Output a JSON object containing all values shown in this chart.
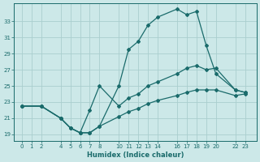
{
  "xlabel": "Humidex (Indice chaleur)",
  "bg_color": "#cce8e8",
  "line_color": "#1a6b6b",
  "grid_color": "#aacece",
  "xtick_vals": [
    0,
    1,
    2,
    4,
    5,
    6,
    7,
    8,
    10,
    11,
    12,
    13,
    14,
    16,
    17,
    18,
    19,
    20,
    22,
    23
  ],
  "ytick_vals": [
    19,
    21,
    23,
    25,
    27,
    29,
    31,
    33
  ],
  "ylim": [
    18.2,
    35.2
  ],
  "xlim": [
    -0.8,
    24.2
  ],
  "curves": [
    {
      "x": [
        0,
        2,
        4,
        5,
        6,
        7,
        8,
        10,
        11,
        12,
        13,
        14,
        16,
        17,
        18,
        19,
        20,
        22,
        23
      ],
      "y": [
        22.5,
        22.5,
        21.0,
        19.8,
        19.2,
        19.2,
        20.0,
        25.0,
        29.5,
        30.5,
        32.5,
        33.5,
        34.5,
        33.8,
        34.2,
        30.0,
        26.5,
        24.5,
        24.2
      ]
    },
    {
      "x": [
        0,
        2,
        4,
        5,
        6,
        7,
        8,
        10,
        11,
        12,
        13,
        14,
        16,
        17,
        18,
        19,
        20,
        22,
        23
      ],
      "y": [
        22.5,
        22.5,
        21.0,
        19.8,
        19.2,
        22.0,
        25.0,
        22.5,
        23.5,
        24.0,
        25.0,
        25.5,
        26.5,
        27.2,
        27.5,
        27.0,
        27.2,
        24.5,
        24.2
      ]
    },
    {
      "x": [
        0,
        2,
        4,
        5,
        6,
        7,
        8,
        10,
        11,
        12,
        13,
        14,
        16,
        17,
        18,
        19,
        20,
        22,
        23
      ],
      "y": [
        22.5,
        22.5,
        21.0,
        19.8,
        19.2,
        19.2,
        20.0,
        21.2,
        21.8,
        22.2,
        22.8,
        23.2,
        23.8,
        24.2,
        24.5,
        24.5,
        24.5,
        23.8,
        24.0
      ]
    }
  ]
}
